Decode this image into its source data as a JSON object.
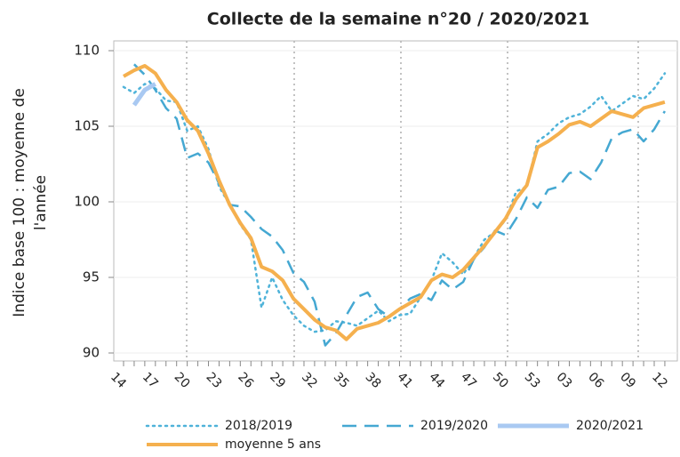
{
  "chart_data": {
    "type": "line",
    "title": "Collecte de la semaine n°20 / 2020/2021",
    "y_label": [
      "Indice base 100 : moyenne de",
      "l'année"
    ],
    "categories": [
      "14",
      null,
      null,
      "17",
      null,
      null,
      "20",
      null,
      null,
      "23",
      null,
      null,
      "26",
      null,
      null,
      "29",
      null,
      null,
      "32",
      null,
      null,
      "35",
      null,
      null,
      "38",
      null,
      null,
      "41",
      null,
      null,
      "44",
      null,
      null,
      "47",
      null,
      null,
      "50",
      null,
      null,
      "53",
      null,
      null,
      "03",
      null,
      null,
      "06",
      null,
      null,
      "09",
      null,
      null,
      "12"
    ],
    "ylim": [
      90,
      110
    ],
    "yticks": [
      90,
      95,
      100,
      105,
      110
    ],
    "grid": true,
    "series": [
      {
        "name": "2018/2019",
        "color": "#4fb3d9",
        "style": "dotted",
        "values": [
          107.6,
          107.2,
          107.8,
          107.5,
          106.7,
          106.6,
          104.7,
          105.0,
          103.5,
          101.0,
          99.8,
          98.5,
          97.5,
          93.0,
          95.0,
          93.5,
          92.5,
          91.8,
          91.4,
          91.5,
          92.1,
          92.0,
          91.8,
          92.3,
          92.8,
          92.1,
          92.5,
          92.6,
          93.7,
          94.8,
          96.6,
          96.0,
          95.2,
          96.3,
          97.5,
          98.0,
          98.8,
          100.7,
          101.0,
          104.0,
          104.5,
          105.2,
          105.6,
          105.8,
          106.3,
          107.0,
          106.0,
          106.5,
          107.0,
          106.8,
          107.5,
          108.5
        ]
      },
      {
        "name": "2019/2020",
        "color": "#45a8d2",
        "style": "dashed",
        "values": [
          null,
          109.1,
          108.4,
          107.4,
          106.2,
          105.5,
          102.9,
          103.2,
          102.6,
          101.2,
          99.8,
          99.7,
          99.0,
          98.2,
          97.7,
          96.8,
          95.3,
          94.7,
          93.4,
          90.5,
          91.3,
          92.5,
          93.7,
          94.0,
          92.9,
          92.4,
          92.9,
          93.6,
          93.9,
          93.5,
          94.8,
          94.2,
          94.7,
          96.2,
          97.0,
          98.1,
          97.8,
          98.9,
          100.3,
          99.6,
          100.8,
          101.0,
          101.9,
          102.0,
          101.5,
          102.6,
          104.2,
          104.6,
          104.8,
          104.0,
          104.8,
          106.0
        ]
      },
      {
        "name": "2020/2021",
        "color": "#a9c9f2",
        "style": "solid",
        "values": [
          null,
          106.4,
          107.4,
          107.8,
          null,
          null,
          null,
          null,
          null,
          null,
          null,
          null,
          null,
          null,
          null,
          null,
          null,
          null,
          null,
          null,
          null,
          null,
          null,
          null,
          null,
          null,
          null,
          null,
          null,
          null,
          null,
          null,
          null,
          null,
          null,
          null,
          null,
          null,
          null,
          null,
          null,
          null,
          null,
          null,
          null,
          null,
          null,
          null,
          null,
          null,
          null,
          null
        ]
      },
      {
        "name": "moyenne 5 ans",
        "color": "#f5b04e",
        "style": "solid",
        "values": [
          108.3,
          108.7,
          109.0,
          108.5,
          107.4,
          106.6,
          105.4,
          104.7,
          103.2,
          101.4,
          99.8,
          98.6,
          97.6,
          95.7,
          95.4,
          94.8,
          93.6,
          92.9,
          92.2,
          91.7,
          91.5,
          90.9,
          91.6,
          91.8,
          92.0,
          92.4,
          92.9,
          93.3,
          93.7,
          94.8,
          95.2,
          95.0,
          95.5,
          96.3,
          97.1,
          98.0,
          98.9,
          100.2,
          101.1,
          103.6,
          104.0,
          104.5,
          105.1,
          105.3,
          105.0,
          105.5,
          106.0,
          105.8,
          105.6,
          106.2,
          106.4,
          106.6
        ]
      }
    ]
  }
}
